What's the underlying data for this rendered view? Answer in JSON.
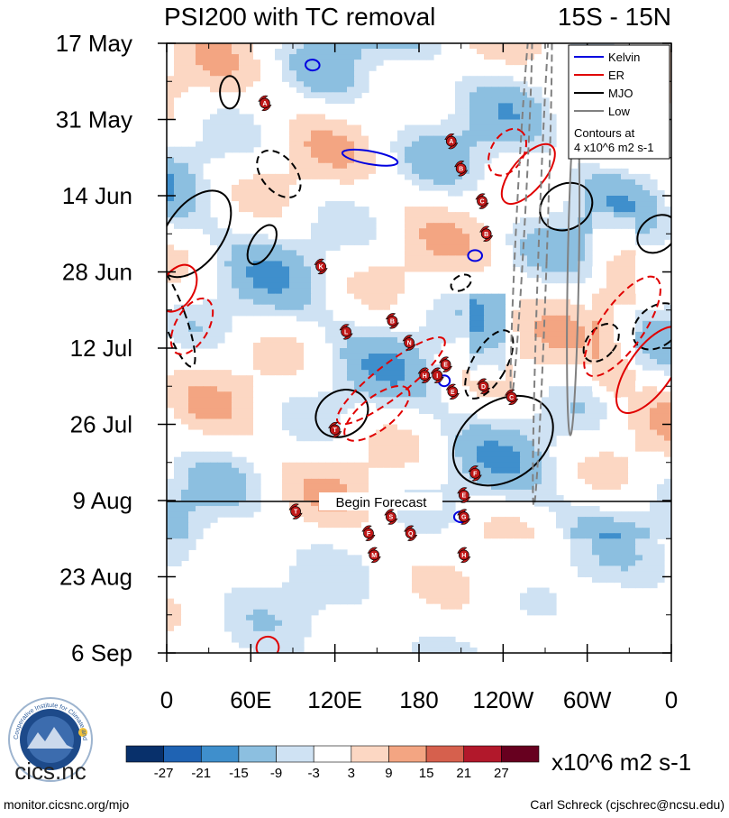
{
  "chart_data": {
    "type": "heatmap",
    "title": "PSI200 with TC removal",
    "region_label": "15S - 15N",
    "y_ticks": [
      "17 May",
      "31 May",
      "14 Jun",
      "28 Jun",
      "12 Jul",
      "26 Jul",
      "9 Aug",
      "23 Aug",
      "6 Sep"
    ],
    "x_ticks": [
      "0",
      "60E",
      "120E",
      "180",
      "120W",
      "60W",
      "0"
    ],
    "x_range_deg": [
      0,
      360
    ],
    "forecast_line_label": "Begin Forecast",
    "forecast_start": "9 Aug",
    "legend": {
      "items": [
        {
          "name": "Kelvin",
          "color": "#0000e0"
        },
        {
          "name": "ER",
          "color": "#e00000"
        },
        {
          "name": "MJO",
          "color": "#000000"
        },
        {
          "name": "Low",
          "color": "#808080"
        }
      ],
      "note_line1": "Contours at",
      "note_line2": "4 x10^6 m2 s-1"
    },
    "colorbar": {
      "levels": [
        "-27",
        "-21",
        "-15",
        "-9",
        "-3",
        "3",
        "9",
        "15",
        "21",
        "27"
      ],
      "colors": [
        "#08306b",
        "#1f63b3",
        "#3f8fcc",
        "#8cbfe0",
        "#cfe2f3",
        "#ffffff",
        "#fcd7c3",
        "#f3a582",
        "#d6604d",
        "#b2182b",
        "#67001f"
      ],
      "units": "x10^6 m2 s-1"
    },
    "tropical_cyclones": [
      {
        "letter": "A",
        "lon": 203,
        "day": 18
      },
      {
        "letter": "A",
        "lon": 70,
        "day": 11
      },
      {
        "letter": "B",
        "lon": 210,
        "day": 23
      },
      {
        "letter": "C",
        "lon": 225,
        "day": 29
      },
      {
        "letter": "B",
        "lon": 228,
        "day": 35
      },
      {
        "letter": "K",
        "lon": 110,
        "day": 41
      },
      {
        "letter": "B",
        "lon": 161,
        "day": 51
      },
      {
        "letter": "L",
        "lon": 128,
        "day": 53
      },
      {
        "letter": "N",
        "lon": 173,
        "day": 55
      },
      {
        "letter": "E",
        "lon": 199,
        "day": 59
      },
      {
        "letter": "H",
        "lon": 184,
        "day": 61
      },
      {
        "letter": "I",
        "lon": 193,
        "day": 61
      },
      {
        "letter": "D",
        "lon": 226,
        "day": 63
      },
      {
        "letter": "E",
        "lon": 204,
        "day": 64
      },
      {
        "letter": "C",
        "lon": 246,
        "day": 65
      },
      {
        "letter": "T",
        "lon": 120,
        "day": 71
      },
      {
        "letter": "F",
        "lon": 220,
        "day": 79
      },
      {
        "letter": "T",
        "lon": 92,
        "day": 86
      },
      {
        "letter": "E",
        "lon": 212,
        "day": 83
      },
      {
        "letter": "S",
        "lon": 160,
        "day": 87
      },
      {
        "letter": "G",
        "lon": 212,
        "day": 87
      },
      {
        "letter": "F",
        "lon": 144,
        "day": 90
      },
      {
        "letter": "Q",
        "lon": 174,
        "day": 90
      },
      {
        "letter": "M",
        "lon": 148,
        "day": 94
      },
      {
        "letter": "H",
        "lon": 212,
        "day": 94
      }
    ]
  },
  "footer": {
    "left": "monitor.cicsnc.org/mjo",
    "right": "Carl Schreck (cjschrec@ncsu.edu)"
  },
  "logo": {
    "text": "cics.nc",
    "ring_text": "Cooperative Institute for Climate and Satellites",
    "color": "#2a5a9a"
  }
}
